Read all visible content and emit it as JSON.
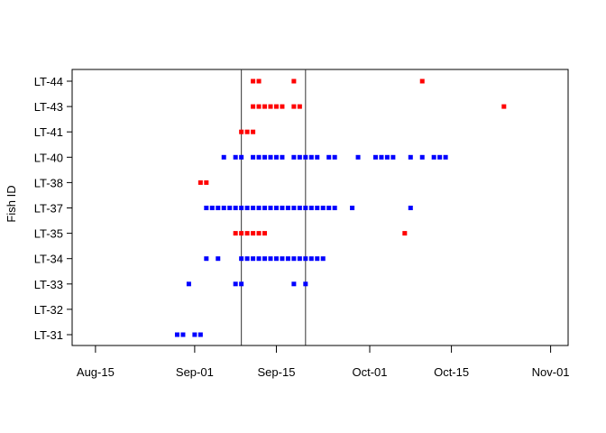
{
  "chart_data": {
    "type": "scatter",
    "title": "",
    "xlabel": "",
    "ylabel": "Fish ID",
    "x_ticks": [
      "2023-08-15",
      "2023-09-01",
      "2023-09-15",
      "2023-10-01",
      "2023-10-15",
      "2023-11-01"
    ],
    "x_tick_labels": [
      "Aug-15",
      "Sep-01",
      "Sep-15",
      "Oct-01",
      "Oct-15",
      "Nov-01"
    ],
    "xlim": [
      "2023-08-11",
      "2023-11-04"
    ],
    "categories": [
      "LT-31",
      "LT-32",
      "LT-33",
      "LT-34",
      "LT-35",
      "LT-37",
      "LT-38",
      "LT-40",
      "LT-41",
      "LT-43",
      "LT-44"
    ],
    "vlines": [
      "2023-09-09",
      "2023-09-20"
    ],
    "colors": {
      "red": "#ff0000",
      "blue": "#0000ff",
      "line": "#000000"
    },
    "grid": false,
    "legend": "none",
    "series": [
      {
        "category": "LT-31",
        "color": "blue",
        "x": [
          "2023-08-29",
          "2023-08-30",
          "2023-09-01",
          "2023-09-02"
        ]
      },
      {
        "category": "LT-32",
        "color": "blue",
        "x": []
      },
      {
        "category": "LT-33",
        "color": "blue",
        "x": [
          "2023-08-31",
          "2023-09-08",
          "2023-09-09",
          "2023-09-18",
          "2023-09-20"
        ]
      },
      {
        "category": "LT-34",
        "color": "blue",
        "x": [
          "2023-09-03",
          "2023-09-05",
          "2023-09-09",
          "2023-09-10",
          "2023-09-11",
          "2023-09-12",
          "2023-09-13",
          "2023-09-14",
          "2023-09-15",
          "2023-09-16",
          "2023-09-17",
          "2023-09-18",
          "2023-09-19",
          "2023-09-20",
          "2023-09-21",
          "2023-09-22",
          "2023-09-23"
        ]
      },
      {
        "category": "LT-35",
        "color": "red",
        "x": [
          "2023-09-08",
          "2023-09-09",
          "2023-09-10",
          "2023-09-11",
          "2023-09-12",
          "2023-09-13",
          "2023-10-07"
        ]
      },
      {
        "category": "LT-37",
        "color": "blue",
        "x": [
          "2023-09-03",
          "2023-09-04",
          "2023-09-05",
          "2023-09-06",
          "2023-09-07",
          "2023-09-08",
          "2023-09-09",
          "2023-09-10",
          "2023-09-11",
          "2023-09-12",
          "2023-09-13",
          "2023-09-14",
          "2023-09-15",
          "2023-09-16",
          "2023-09-17",
          "2023-09-18",
          "2023-09-19",
          "2023-09-20",
          "2023-09-21",
          "2023-09-22",
          "2023-09-23",
          "2023-09-24",
          "2023-09-25",
          "2023-09-28",
          "2023-10-08"
        ]
      },
      {
        "category": "LT-38",
        "color": "red",
        "x": [
          "2023-09-02",
          "2023-09-03"
        ]
      },
      {
        "category": "LT-40",
        "color": "blue",
        "x": [
          "2023-09-06",
          "2023-09-08",
          "2023-09-09",
          "2023-09-11",
          "2023-09-12",
          "2023-09-13",
          "2023-09-14",
          "2023-09-15",
          "2023-09-16",
          "2023-09-18",
          "2023-09-19",
          "2023-09-20",
          "2023-09-21",
          "2023-09-22",
          "2023-09-24",
          "2023-09-25",
          "2023-09-29",
          "2023-10-02",
          "2023-10-03",
          "2023-10-04",
          "2023-10-05",
          "2023-10-08",
          "2023-10-10",
          "2023-10-12",
          "2023-10-13",
          "2023-10-14"
        ]
      },
      {
        "category": "LT-41",
        "color": "red",
        "x": [
          "2023-09-09",
          "2023-09-10",
          "2023-09-11"
        ]
      },
      {
        "category": "LT-43",
        "color": "red",
        "x": [
          "2023-09-11",
          "2023-09-12",
          "2023-09-13",
          "2023-09-14",
          "2023-09-15",
          "2023-09-16",
          "2023-09-18",
          "2023-09-19",
          "2023-10-24"
        ]
      },
      {
        "category": "LT-44",
        "color": "red",
        "x": [
          "2023-09-11",
          "2023-09-12",
          "2023-09-18",
          "2023-10-10"
        ]
      }
    ]
  }
}
